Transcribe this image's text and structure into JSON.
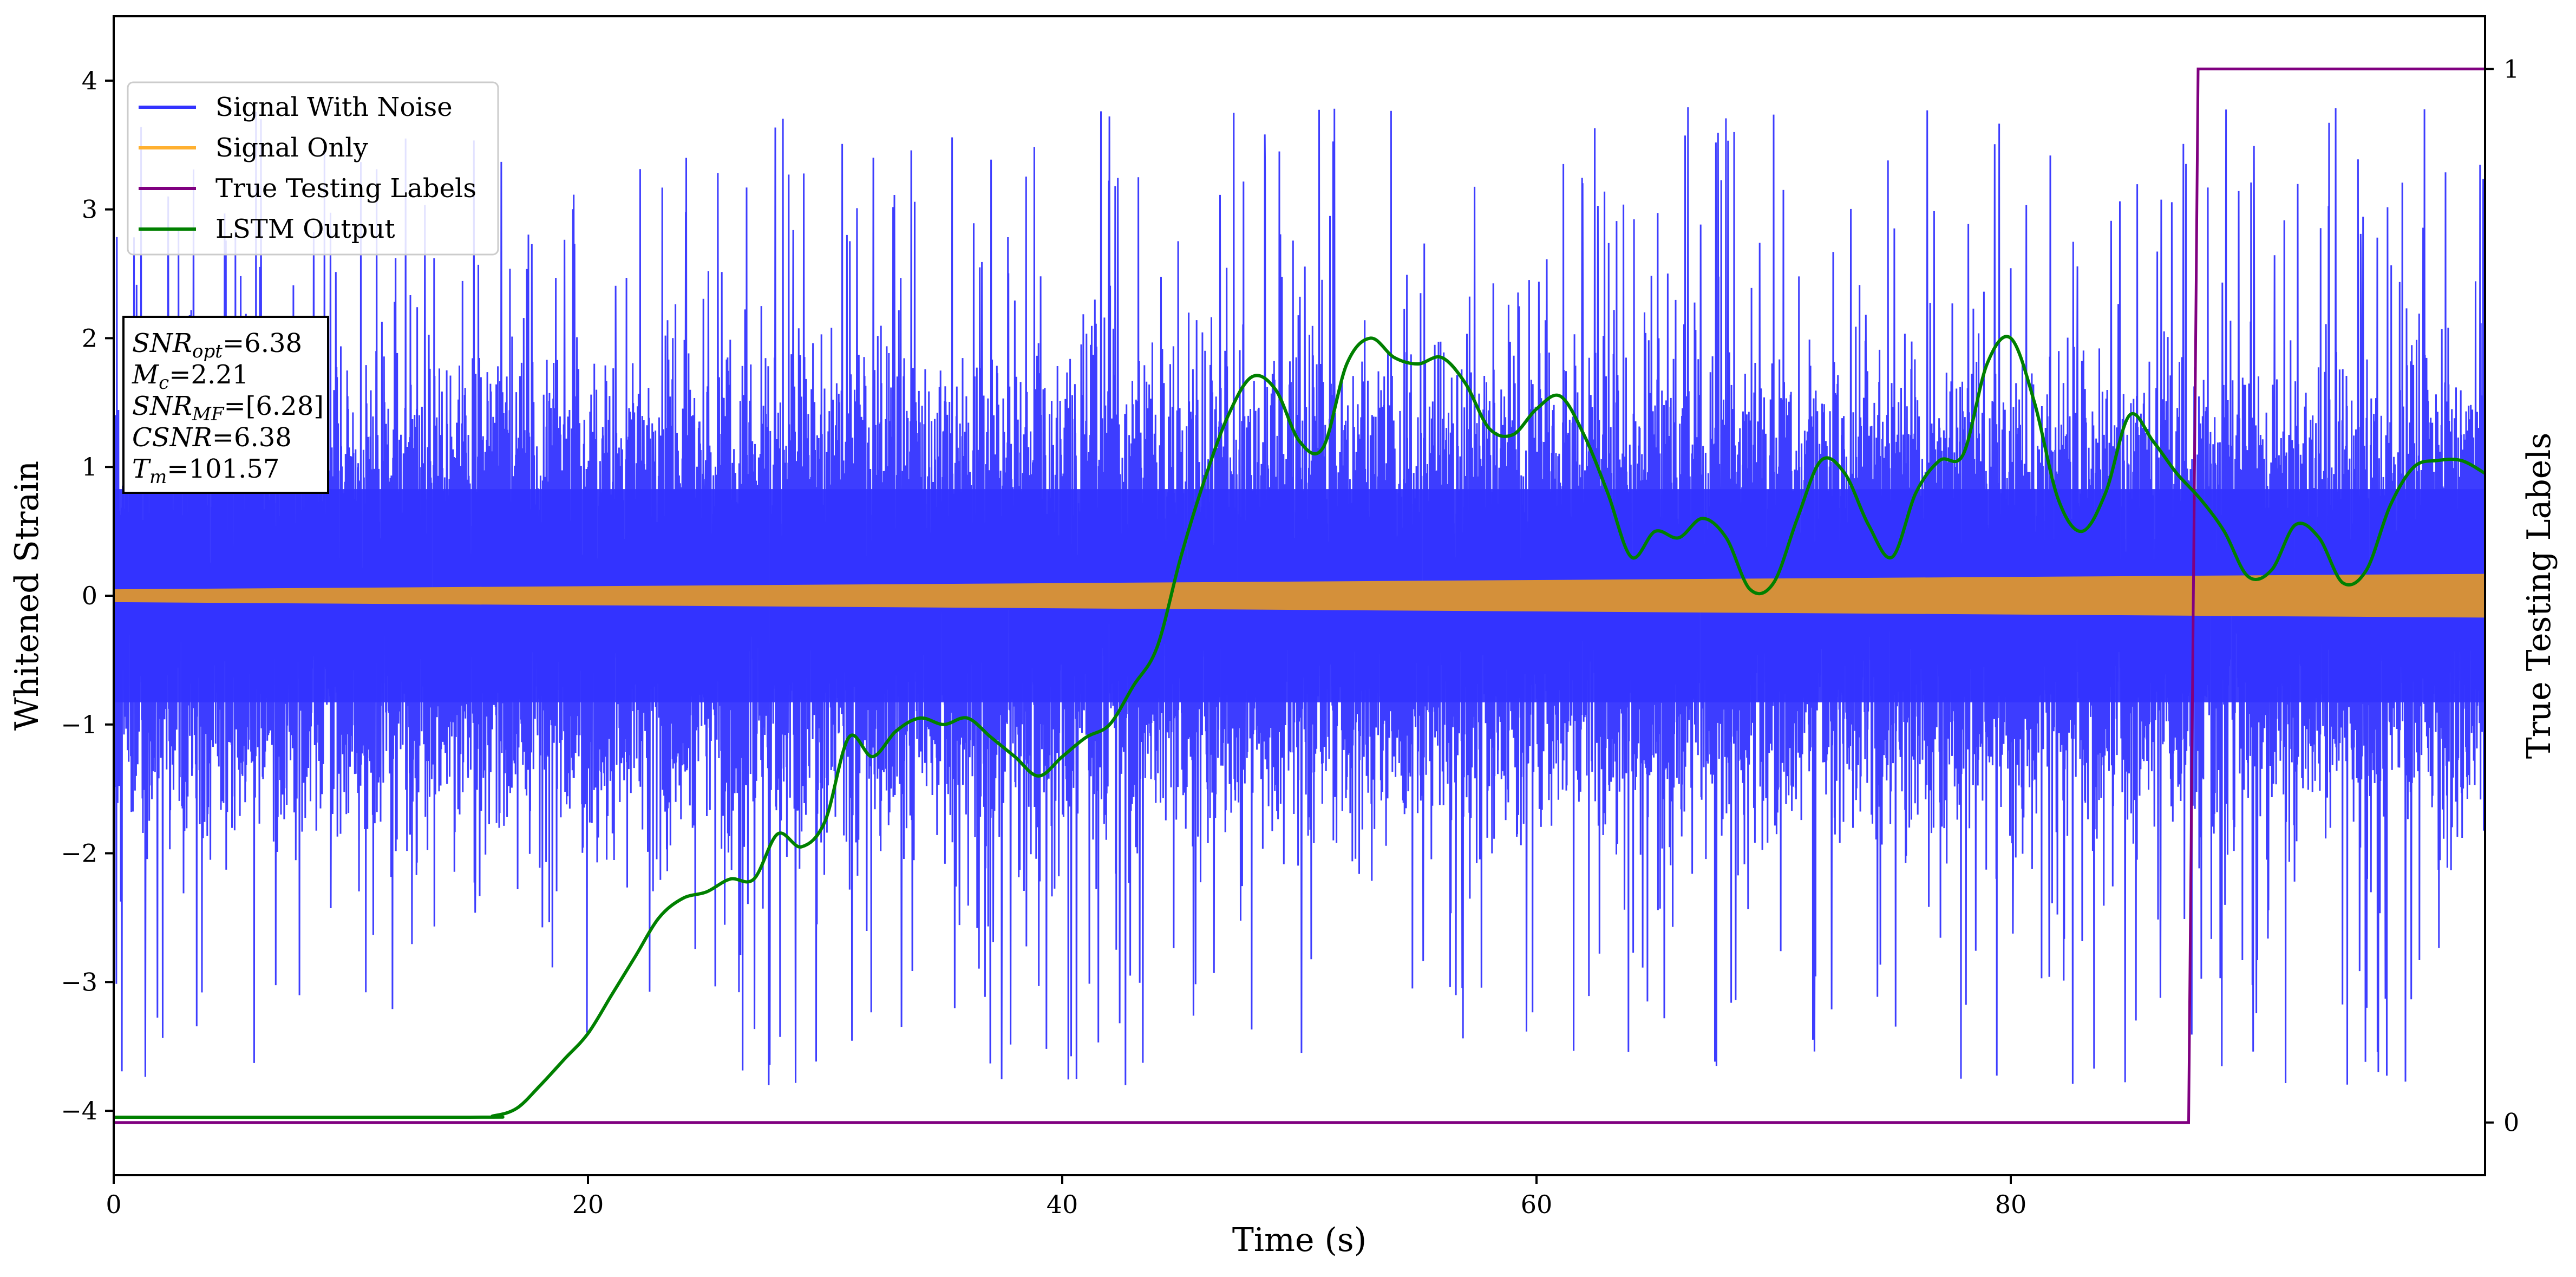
{
  "chart_data": {
    "type": "line",
    "xlabel": "Time (s)",
    "ylabel": "Whitened Strain",
    "y2label": "True Testing Labels",
    "xlim": [
      0,
      100
    ],
    "ylim": [
      -4.5,
      4.5
    ],
    "y2lim": [
      -0.05,
      1.05
    ],
    "xticks": [
      0,
      20,
      40,
      60,
      80
    ],
    "yticks": [
      -4,
      -3,
      -2,
      -1,
      0,
      1,
      2,
      3,
      4
    ],
    "y2ticks": [
      0,
      1
    ],
    "xtick_labels": [
      "0",
      "20",
      "40",
      "60",
      "80"
    ],
    "ytick_labels": [
      "−4",
      "−3",
      "−2",
      "−1",
      "0",
      "1",
      "2",
      "3",
      "4"
    ],
    "y2tick_labels": [
      "0",
      "1"
    ],
    "legend": {
      "placement": "upper-left",
      "entries": [
        {
          "label": "Signal With Noise",
          "color": "#3333ff"
        },
        {
          "label": "Signal Only",
          "color": "#ffb030"
        },
        {
          "label": "True Testing Labels",
          "color": "#800080"
        },
        {
          "label": "LSTM Output",
          "color": "#008000"
        }
      ]
    },
    "annotation": {
      "lines": [
        {
          "var": "SNR",
          "sub": "opt",
          "value": "=6.38"
        },
        {
          "var": "M",
          "sub": "c",
          "value": "=2.21"
        },
        {
          "var": "SNR",
          "sub": "MF",
          "value": "=[6.28]"
        },
        {
          "var": "CSNR",
          "sub": "",
          "value": "=6.38"
        },
        {
          "var": "T",
          "sub": "m",
          "value": "=101.57"
        }
      ]
    },
    "series": [
      {
        "name": "Signal With Noise",
        "color": "#3333ff",
        "axis": "left",
        "band": {
          "core": 1.15,
          "typical_max": 2.4,
          "peak": 4.05,
          "trough": -3.8
        }
      },
      {
        "name": "Signal Only",
        "color": "#d4903a",
        "axis": "left",
        "amplitude": {
          "x": [
            0,
            100
          ],
          "y": [
            0.05,
            0.17
          ]
        }
      },
      {
        "name": "True Testing Labels",
        "color": "#800080",
        "axis": "right",
        "x": [
          0,
          87.5,
          87.9,
          100
        ],
        "y": [
          0,
          0,
          1,
          1
        ]
      },
      {
        "name": "LSTM Output",
        "color": "#008000",
        "axis": "left",
        "x": [
          0,
          15,
          16,
          17,
          18,
          19,
          20,
          21,
          22,
          23,
          24,
          25,
          26,
          27,
          28,
          29,
          30,
          31,
          32,
          33,
          34,
          35,
          36,
          37,
          38,
          39,
          40,
          41,
          42,
          43,
          44,
          45,
          46,
          47,
          48,
          49,
          50,
          51,
          52,
          53,
          54,
          55,
          56,
          57,
          58,
          59,
          60,
          61,
          62,
          63,
          64,
          65,
          66,
          67,
          68,
          69,
          70,
          71,
          72,
          73,
          74,
          75,
          76,
          77,
          78,
          79,
          80,
          81,
          82,
          83,
          84,
          85,
          86,
          87,
          88,
          89,
          90,
          91,
          92,
          93,
          94,
          95,
          96,
          97,
          98,
          99,
          100
        ],
        "y": [
          -4.05,
          -4.05,
          -4.04,
          -3.98,
          -3.8,
          -3.6,
          -3.4,
          -3.1,
          -2.8,
          -2.5,
          -2.35,
          -2.3,
          -2.2,
          -2.2,
          -1.85,
          -1.95,
          -1.75,
          -1.1,
          -1.25,
          -1.05,
          -0.95,
          -1.0,
          -0.95,
          -1.1,
          -1.25,
          -1.4,
          -1.25,
          -1.1,
          -1.0,
          -0.7,
          -0.4,
          0.3,
          0.9,
          1.4,
          1.7,
          1.6,
          1.2,
          1.15,
          1.8,
          2.0,
          1.85,
          1.8,
          1.85,
          1.65,
          1.3,
          1.25,
          1.45,
          1.55,
          1.25,
          0.8,
          0.3,
          0.5,
          0.45,
          0.6,
          0.45,
          0.05,
          0.1,
          0.6,
          1.05,
          0.95,
          0.55,
          0.3,
          0.8,
          1.05,
          1.1,
          1.8,
          2.0,
          1.5,
          0.75,
          0.5,
          0.8,
          1.4,
          1.2,
          0.95,
          0.75,
          0.5,
          0.15,
          0.2,
          0.55,
          0.45,
          0.1,
          0.2,
          0.7,
          1.0,
          1.05,
          1.05,
          0.95
        ]
      }
    ]
  }
}
